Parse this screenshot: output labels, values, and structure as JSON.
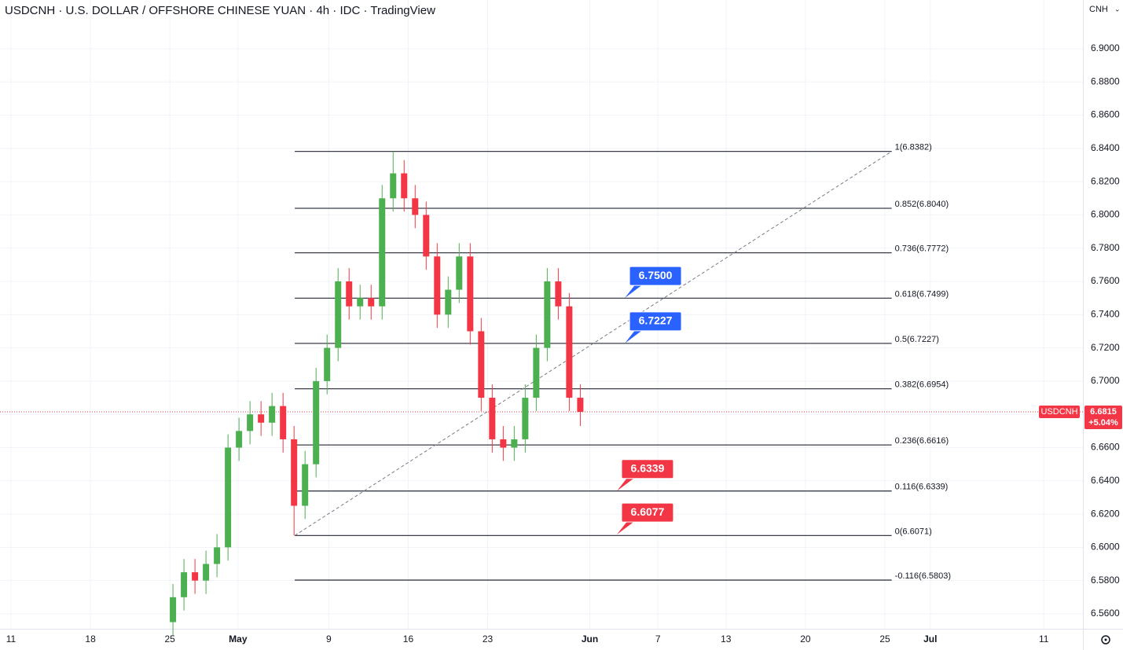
{
  "chart_data": {
    "type": "candlestick",
    "title": "USDCNH · U.S. DOLLAR / OFFSHORE CHINESE YUAN · 4h · IDC · TradingView",
    "currency": "CNH",
    "x": [
      14.27,
      15.24,
      16.21,
      17.18,
      18.15,
      19.12,
      20.09,
      21.06,
      22.03,
      23.0,
      23.97,
      24.94,
      25.91,
      26.88,
      27.85,
      28.82,
      29.79,
      30.76,
      31.73,
      32.7,
      33.67,
      34.64,
      35.61,
      36.58,
      37.55,
      38.52,
      39.49,
      40.46,
      41.43,
      42.4,
      43.37,
      44.34,
      45.31,
      46.28,
      47.25,
      48.22,
      49.19,
      50.16
    ],
    "open": [
      6.555,
      6.57,
      6.585,
      6.58,
      6.59,
      6.6,
      6.66,
      6.67,
      6.68,
      6.675,
      6.685,
      6.665,
      6.625,
      6.65,
      6.7,
      6.72,
      6.76,
      6.745,
      6.75,
      6.745,
      6.81,
      6.825,
      6.81,
      6.8,
      6.775,
      6.74,
      6.755,
      6.775,
      6.73,
      6.69,
      6.665,
      6.66,
      6.665,
      6.69,
      6.72,
      6.76,
      6.745,
      6.69
    ],
    "high": [
      6.578,
      6.593,
      6.593,
      6.598,
      6.608,
      6.668,
      6.678,
      6.688,
      6.688,
      6.693,
      6.693,
      6.673,
      6.658,
      6.708,
      6.728,
      6.768,
      6.768,
      6.758,
      6.758,
      6.818,
      6.8382,
      6.833,
      6.818,
      6.808,
      6.783,
      6.763,
      6.783,
      6.783,
      6.738,
      6.698,
      6.673,
      6.673,
      6.698,
      6.728,
      6.768,
      6.768,
      6.753,
      6.698
    ],
    "low": [
      6.547,
      6.562,
      6.572,
      6.572,
      6.582,
      6.592,
      6.652,
      6.662,
      6.667,
      6.667,
      6.657,
      6.6071,
      6.617,
      6.642,
      6.692,
      6.712,
      6.737,
      6.737,
      6.737,
      6.737,
      6.802,
      6.802,
      6.792,
      6.767,
      6.732,
      6.732,
      6.747,
      6.722,
      6.682,
      6.657,
      6.652,
      6.652,
      6.657,
      6.682,
      6.712,
      6.737,
      6.682,
      6.673
    ],
    "close": [
      6.57,
      6.585,
      6.58,
      6.59,
      6.6,
      6.66,
      6.67,
      6.68,
      6.675,
      6.685,
      6.665,
      6.625,
      6.65,
      6.7,
      6.72,
      6.76,
      6.745,
      6.75,
      6.745,
      6.81,
      6.825,
      6.81,
      6.8,
      6.775,
      6.74,
      6.755,
      6.775,
      6.73,
      6.69,
      6.665,
      6.66,
      6.665,
      6.69,
      6.72,
      6.76,
      6.745,
      6.69,
      6.6815
    ],
    "up_color": "#4caf50",
    "down_color": "#f23645",
    "xlim": [
      -0.97,
      94.45
    ],
    "ylim": [
      6.551,
      6.9293
    ],
    "xticks": [
      {
        "value": 0,
        "label": "11"
      },
      {
        "value": 7,
        "label": "18"
      },
      {
        "value": 14,
        "label": "25"
      },
      {
        "value": 20,
        "label": "May"
      },
      {
        "value": 28,
        "label": "9"
      },
      {
        "value": 35,
        "label": "16"
      },
      {
        "value": 42,
        "label": "23"
      },
      {
        "value": 51,
        "label": "Jun"
      },
      {
        "value": 57,
        "label": "7"
      },
      {
        "value": 63,
        "label": "13"
      },
      {
        "value": 70,
        "label": "20"
      },
      {
        "value": 77,
        "label": "25"
      },
      {
        "value": 81,
        "label": "Jul"
      },
      {
        "value": 91,
        "label": "11"
      }
    ],
    "yticks": [
      {
        "value": 6.56,
        "label": "6.5600"
      },
      {
        "value": 6.58,
        "label": "6.5800"
      },
      {
        "value": 6.6,
        "label": "6.6000"
      },
      {
        "value": 6.62,
        "label": "6.6200"
      },
      {
        "value": 6.64,
        "label": "6.6400"
      },
      {
        "value": 6.66,
        "label": "6.6600"
      },
      {
        "value": 6.68,
        "label": "6.6800"
      },
      {
        "value": 6.7,
        "label": "6.7000"
      },
      {
        "value": 6.72,
        "label": "6.7200"
      },
      {
        "value": 6.74,
        "label": "6.7400"
      },
      {
        "value": 6.76,
        "label": "6.7600"
      },
      {
        "value": 6.78,
        "label": "6.7800"
      },
      {
        "value": 6.8,
        "label": "6.8000"
      },
      {
        "value": 6.82,
        "label": "6.8200"
      },
      {
        "value": 6.84,
        "label": "6.8400"
      },
      {
        "value": 6.86,
        "label": "6.8600"
      },
      {
        "value": 6.88,
        "label": "6.8800"
      },
      {
        "value": 6.9,
        "label": "6.9000"
      }
    ],
    "grid": true,
    "fib_start": 25.0,
    "fib_end": 77.6,
    "fib_levels": [
      {
        "value": 6.8382,
        "label": "1(6.8382)"
      },
      {
        "value": 6.804,
        "label": "0.852(6.8040)"
      },
      {
        "value": 6.7772,
        "label": "0.736(6.7772)"
      },
      {
        "value": 6.7499,
        "label": "0.618(6.7499)"
      },
      {
        "value": 6.7227,
        "label": "0.5(6.7227)"
      },
      {
        "value": 6.6954,
        "label": "0.382(6.6954)"
      },
      {
        "value": 6.6616,
        "label": "0.236(6.6616)"
      },
      {
        "value": 6.6339,
        "label": "0.116(6.6339)"
      },
      {
        "value": 6.6071,
        "label": "0(6.6071)"
      },
      {
        "value": 6.5803,
        "label": "-0.116(6.5803)"
      }
    ],
    "callouts": [
      {
        "value": 6.75,
        "label": "6.7500",
        "color": "#2962ff",
        "x": 54.5
      },
      {
        "value": 6.7227,
        "label": "6.7227",
        "color": "#2962ff",
        "x": 54.5
      },
      {
        "value": 6.6339,
        "label": "6.6339",
        "color": "#f23645",
        "x": 53.8
      },
      {
        "value": 6.6077,
        "label": "6.6077",
        "color": "#f23645",
        "x": 53.8
      }
    ],
    "current": {
      "symbol": "USDCNH",
      "value": 6.6815,
      "label": "6.6815",
      "change": {
        "value": 5.04,
        "label": "+5.04%"
      },
      "color": "#f23645"
    }
  }
}
